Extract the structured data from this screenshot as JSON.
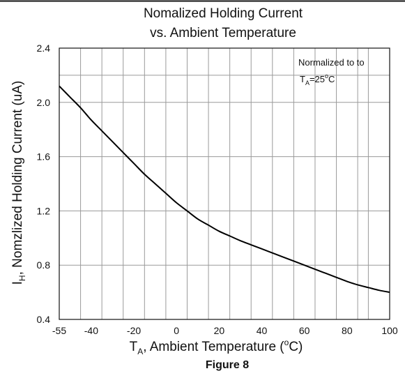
{
  "chart_data": {
    "type": "line",
    "title_line1": "Nomalized Holding Current",
    "title_line2": "vs. Ambient Temperature",
    "xlabel": {
      "pre": "T",
      "sub": "A",
      "text": ", Ambient Temperature (",
      "sup": "o",
      "post": "C)"
    },
    "ylabel": {
      "pre": "I",
      "sub": "H",
      "text": ", Nomzlized Holding Current (uA)"
    },
    "xlim": [
      -55,
      100
    ],
    "ylim": [
      0.4,
      2.4
    ],
    "x_ticks": [
      {
        "value": -55,
        "label": "-55"
      },
      {
        "value": -40,
        "label": "-40"
      },
      {
        "value": -20,
        "label": "-20"
      },
      {
        "value": 0,
        "label": "0"
      },
      {
        "value": 20,
        "label": "20"
      },
      {
        "value": 40,
        "label": "40"
      },
      {
        "value": 60,
        "label": "60"
      },
      {
        "value": 80,
        "label": "80"
      },
      {
        "value": 100,
        "label": "100"
      }
    ],
    "x_grid": [
      -45,
      -35,
      -25,
      -15,
      -5,
      5,
      15,
      25,
      35,
      45,
      55,
      65,
      75,
      85,
      90
    ],
    "y_ticks": [
      {
        "value": 0.4,
        "label": "0.4"
      },
      {
        "value": 0.8,
        "label": "0.8"
      },
      {
        "value": 1.2,
        "label": "1.2"
      },
      {
        "value": 1.6,
        "label": "1.6"
      },
      {
        "value": 2.0,
        "label": "2.0"
      },
      {
        "value": 2.4,
        "label": "2.4"
      }
    ],
    "y_grid": [
      0.4,
      0.8,
      1.2,
      1.6,
      2.0,
      2.2,
      2.4
    ],
    "annotation": {
      "line1": "Normalized to to",
      "pre": "T",
      "sub": "A",
      "post": "=25",
      "sup": "o",
      "unit": "C"
    },
    "grid": true,
    "series": [
      {
        "x": [
          -55,
          -50,
          -45,
          -40,
          -35,
          -30,
          -25,
          -20,
          -15,
          -10,
          -5,
          0,
          5,
          10,
          15,
          20,
          25,
          30,
          35,
          40,
          45,
          50,
          55,
          60,
          65,
          70,
          75,
          80,
          85,
          90,
          95,
          100
        ],
        "y": [
          2.12,
          2.04,
          1.96,
          1.87,
          1.79,
          1.71,
          1.63,
          1.55,
          1.47,
          1.4,
          1.33,
          1.26,
          1.2,
          1.14,
          1.095,
          1.05,
          1.015,
          0.98,
          0.95,
          0.92,
          0.89,
          0.86,
          0.83,
          0.8,
          0.77,
          0.74,
          0.71,
          0.68,
          0.655,
          0.635,
          0.615,
          0.6
        ]
      }
    ]
  },
  "figure_caption": "Figure 8"
}
